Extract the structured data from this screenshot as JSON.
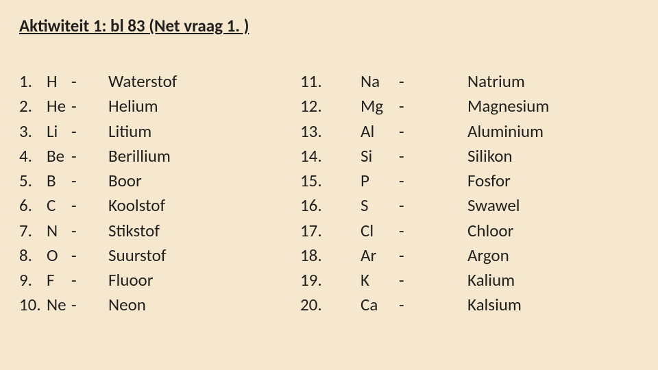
{
  "background_color": "#f6e8ce",
  "text_color": "#201f1e",
  "font_family": "Calibri, 'Segoe UI', Arial, sans-serif",
  "title": "Aktiwiteit 1:  bl 83 (Net vraag 1. )",
  "title_fontsize": 25,
  "body_fontsize": 25,
  "line_height": 1.45,
  "left": [
    {
      "n": "1.",
      "sym": "H",
      "dash": "-",
      "name": "Waterstof"
    },
    {
      "n": "2.",
      "sym": "He",
      "dash": "-",
      "name": "Helium"
    },
    {
      "n": "3.",
      "sym": "Li",
      "dash": "-",
      "name": "Litium"
    },
    {
      "n": "4.",
      "sym": "Be",
      "dash": "-",
      "name": "Berillium"
    },
    {
      "n": "5.",
      "sym": "B",
      "dash": "-",
      "name": "Boor"
    },
    {
      "n": "6.",
      "sym": "C",
      "dash": "-",
      "name": "Koolstof"
    },
    {
      "n": "7.",
      "sym": "N",
      "dash": "-",
      "name": "Stikstof"
    },
    {
      "n": "8.",
      "sym": "O",
      "dash": "-",
      "name": "Suurstof"
    },
    {
      "n": "9.",
      "sym": "F",
      "dash": "-",
      "name": "Fluoor"
    },
    {
      "n": "10.",
      "sym": "Ne",
      "dash": "-",
      "name": "Neon"
    }
  ],
  "right": [
    {
      "n": "11.",
      "sym": "Na",
      "dash": "-",
      "name": "Natrium"
    },
    {
      "n": "12.",
      "sym": "Mg",
      "dash": "-",
      "name": "Magnesium"
    },
    {
      "n": "13.",
      "sym": "Al",
      "dash": "-",
      "name": "Aluminium"
    },
    {
      "n": "14.",
      "sym": "Si",
      "dash": "-",
      "name": "Silikon"
    },
    {
      "n": "15.",
      "sym": "P",
      "dash": "-",
      "name": "Fosfor"
    },
    {
      "n": "16.",
      "sym": "S",
      "dash": "-",
      "name": "Swawel"
    },
    {
      "n": "17.",
      "sym": "Cl",
      "dash": "-",
      "name": "Chloor"
    },
    {
      "n": "18.",
      "sym": "Ar",
      "dash": "-",
      "name": "Argon"
    },
    {
      "n": "19.",
      "sym": "K",
      "dash": "-",
      "name": "Kalium"
    },
    {
      "n": "20.",
      "sym": "Ca",
      "dash": "-",
      "name": "Kalsium"
    }
  ]
}
